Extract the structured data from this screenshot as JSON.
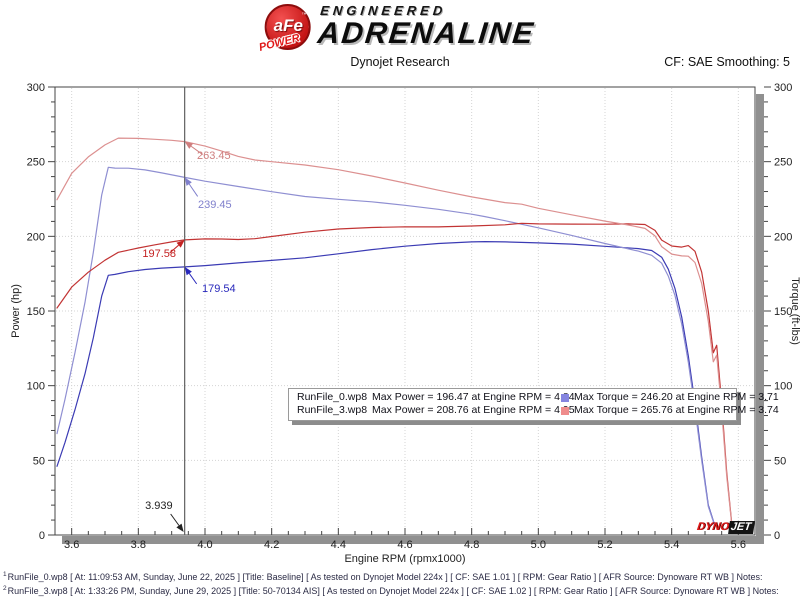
{
  "header": {
    "brand": {
      "badge": "aFe",
      "badge_tm": "™",
      "badge_sub": "POWER",
      "line1": "ENGINEERED",
      "line2": "ADRENALINE"
    },
    "subtitle": "Dynojet Research",
    "smoothing": "CF: SAE Smoothing: 5"
  },
  "chart_data": {
    "type": "line",
    "xlabel": "Engine RPM (rpmx1000)",
    "ylabel_left": "Power (hp)",
    "ylabel_right": "Torque (ft-lbs)",
    "xlim": [
      3.55,
      5.65
    ],
    "ylim_left": [
      0,
      300
    ],
    "ylim_right": [
      0,
      300
    ],
    "x_major_ticks": [
      3.6,
      3.8,
      4.0,
      4.2,
      4.4,
      4.6,
      4.8,
      5.0,
      5.2,
      5.4,
      5.6
    ],
    "x_minor_step": 0.05,
    "y_major_ticks": [
      0,
      50,
      100,
      150,
      200,
      250,
      300
    ],
    "y_minor_step": 10,
    "grid": true,
    "grid_color": "#d4d4d4",
    "frame_color": "#444444",
    "shadow_color": "#909090",
    "cursor": {
      "rpm": 3.939,
      "label": "3.939",
      "line_color": "#606060",
      "readouts": [
        {
          "series": "torque_3",
          "text": "263.45",
          "value": 263.45,
          "color": "#cf7e7e"
        },
        {
          "series": "torque_0",
          "text": "239.45",
          "value": 239.45,
          "color": "#8080cc"
        },
        {
          "series": "power_3",
          "text": "197.58",
          "value": 197.58,
          "color": "#c42222"
        },
        {
          "series": "power_0",
          "text": "179.54",
          "value": 179.54,
          "color": "#2828bb"
        }
      ]
    },
    "series": [
      {
        "id": "power_0",
        "name": "RunFile_0.wp8 Power",
        "axis": "left",
        "color": "#3b3bb4",
        "max": {
          "value": 196.47,
          "rpm": 4.84
        },
        "points": [
          [
            3.556,
            46
          ],
          [
            3.58,
            62
          ],
          [
            3.61,
            84
          ],
          [
            3.64,
            108
          ],
          [
            3.665,
            132
          ],
          [
            3.69,
            160
          ],
          [
            3.71,
            173.9
          ],
          [
            3.73,
            174.5
          ],
          [
            3.77,
            176.3
          ],
          [
            3.82,
            177.8
          ],
          [
            3.87,
            178.7
          ],
          [
            3.939,
            179.54
          ],
          [
            4.0,
            180.4
          ],
          [
            4.1,
            182.2
          ],
          [
            4.2,
            183.9
          ],
          [
            4.3,
            185.6
          ],
          [
            4.4,
            188.3
          ],
          [
            4.5,
            191.1
          ],
          [
            4.6,
            193.4
          ],
          [
            4.7,
            195.2
          ],
          [
            4.8,
            196.3
          ],
          [
            4.84,
            196.47
          ],
          [
            4.9,
            196.3
          ],
          [
            5.0,
            195.6
          ],
          [
            5.1,
            194.8
          ],
          [
            5.2,
            193.3
          ],
          [
            5.3,
            191.8
          ],
          [
            5.34,
            190.5
          ],
          [
            5.37,
            186
          ],
          [
            5.39,
            178
          ],
          [
            5.41,
            165
          ],
          [
            5.43,
            146
          ],
          [
            5.45,
            120
          ],
          [
            5.47,
            88
          ],
          [
            5.49,
            52
          ],
          [
            5.51,
            20
          ],
          [
            5.53,
            6
          ]
        ]
      },
      {
        "id": "torque_0",
        "name": "RunFile_0.wp8 Torque",
        "axis": "right",
        "color": "#8f8fd2",
        "max": {
          "value": 246.2,
          "rpm": 3.71
        },
        "points": [
          [
            3.556,
            67.9
          ],
          [
            3.58,
            90.9
          ],
          [
            3.61,
            122.2
          ],
          [
            3.64,
            155.8
          ],
          [
            3.665,
            189.2
          ],
          [
            3.69,
            227.7
          ],
          [
            3.71,
            246.2
          ],
          [
            3.73,
            245.7
          ],
          [
            3.77,
            245.6
          ],
          [
            3.82,
            244.5
          ],
          [
            3.87,
            242.5
          ],
          [
            3.939,
            239.45
          ],
          [
            4.0,
            236.9
          ],
          [
            4.1,
            233.4
          ],
          [
            4.2,
            229.9
          ],
          [
            4.3,
            226.7
          ],
          [
            4.4,
            224.8
          ],
          [
            4.5,
            223.1
          ],
          [
            4.6,
            220.8
          ],
          [
            4.7,
            218.1
          ],
          [
            4.8,
            214.8
          ],
          [
            4.84,
            213.2
          ],
          [
            4.9,
            210.5
          ],
          [
            5.0,
            205.7
          ],
          [
            5.1,
            200.6
          ],
          [
            5.2,
            195.2
          ],
          [
            5.3,
            190.1
          ],
          [
            5.34,
            187.3
          ],
          [
            5.37,
            182
          ],
          [
            5.39,
            173.4
          ],
          [
            5.41,
            160.3
          ],
          [
            5.43,
            141.3
          ],
          [
            5.45,
            115.7
          ],
          [
            5.47,
            84.5
          ],
          [
            5.49,
            49.8
          ],
          [
            5.51,
            19.1
          ],
          [
            5.53,
            5.7
          ]
        ]
      },
      {
        "id": "power_3",
        "name": "RunFile_3.wp8 Power",
        "axis": "left",
        "color": "#c23434",
        "max": {
          "value": 208.76,
          "rpm": 4.95
        },
        "points": [
          [
            3.556,
            152
          ],
          [
            3.6,
            166
          ],
          [
            3.65,
            176
          ],
          [
            3.7,
            184
          ],
          [
            3.74,
            189.3
          ],
          [
            3.8,
            192.2
          ],
          [
            3.85,
            194.3
          ],
          [
            3.9,
            196.3
          ],
          [
            3.939,
            197.58
          ],
          [
            4.0,
            198.3
          ],
          [
            4.05,
            198.2
          ],
          [
            4.1,
            197.9
          ],
          [
            4.15,
            198.4
          ],
          [
            4.2,
            199.9
          ],
          [
            4.3,
            202.8
          ],
          [
            4.4,
            204.9
          ],
          [
            4.5,
            205.9
          ],
          [
            4.6,
            206.4
          ],
          [
            4.7,
            206.3
          ],
          [
            4.8,
            206.9
          ],
          [
            4.9,
            207.7
          ],
          [
            4.95,
            208.76
          ],
          [
            5.0,
            208.3
          ],
          [
            5.1,
            208.2
          ],
          [
            5.2,
            208.1
          ],
          [
            5.27,
            208.3
          ],
          [
            5.32,
            207.9
          ],
          [
            5.35,
            204
          ],
          [
            5.37,
            197.5
          ],
          [
            5.4,
            193.5
          ],
          [
            5.43,
            192.8
          ],
          [
            5.45,
            193.8
          ],
          [
            5.47,
            190
          ],
          [
            5.49,
            176
          ],
          [
            5.51,
            150
          ],
          [
            5.525,
            122
          ],
          [
            5.535,
            127
          ],
          [
            5.55,
            88
          ],
          [
            5.565,
            42
          ],
          [
            5.58,
            8
          ]
        ]
      },
      {
        "id": "torque_3",
        "name": "RunFile_3.wp8 Torque",
        "axis": "right",
        "color": "#dc9090",
        "max": {
          "value": 265.76,
          "rpm": 3.74
        },
        "points": [
          [
            3.556,
            224.5
          ],
          [
            3.6,
            242.2
          ],
          [
            3.65,
            253.2
          ],
          [
            3.7,
            261.2
          ],
          [
            3.74,
            265.76
          ],
          [
            3.8,
            265.6
          ],
          [
            3.85,
            265
          ],
          [
            3.9,
            264.3
          ],
          [
            3.939,
            263.45
          ],
          [
            4.0,
            260.4
          ],
          [
            4.05,
            257.1
          ],
          [
            4.1,
            253.5
          ],
          [
            4.15,
            251.1
          ],
          [
            4.2,
            250
          ],
          [
            4.3,
            247.8
          ],
          [
            4.4,
            244.6
          ],
          [
            4.5,
            240.4
          ],
          [
            4.6,
            235.7
          ],
          [
            4.7,
            230.9
          ],
          [
            4.8,
            226.4
          ],
          [
            4.9,
            222.6
          ],
          [
            4.95,
            221.5
          ],
          [
            5.0,
            218.8
          ],
          [
            5.1,
            214.4
          ],
          [
            5.2,
            210.2
          ],
          [
            5.27,
            207.6
          ],
          [
            5.32,
            205.3
          ],
          [
            5.35,
            200.3
          ],
          [
            5.37,
            193.1
          ],
          [
            5.4,
            188.1
          ],
          [
            5.43,
            186.9
          ],
          [
            5.45,
            186.7
          ],
          [
            5.47,
            182.5
          ],
          [
            5.49,
            168.4
          ],
          [
            5.51,
            143
          ],
          [
            5.525,
            116
          ],
          [
            5.535,
            120.5
          ],
          [
            5.55,
            83.3
          ],
          [
            5.565,
            39.6
          ],
          [
            5.58,
            7.5
          ]
        ]
      }
    ]
  },
  "legend": {
    "rows": [
      {
        "file": "RunFile_0.wp8",
        "power_color": "#1d1dcf",
        "power_text": "Max Power = 196.47 at Engine RPM = 4.84",
        "torque_color": "#8585e0",
        "torque_text": "Max Torque = 246.20 at Engine RPM = 3.71"
      },
      {
        "file": "RunFile_3.wp8",
        "power_color": "#e01414",
        "power_text": "Max Power = 208.76 at Engine RPM = 4.95",
        "torque_color": "#ef8c8c",
        "torque_text": "Max Torque = 265.76 at Engine RPM = 3.74"
      }
    ]
  },
  "watermark": {
    "part1": "DYNO",
    "part2": "JET"
  },
  "footer": {
    "lines": [
      {
        "sup": "1",
        "text": "RunFile_0.wp8 [ At: 11:09:53 AM, Sunday, June 22, 2025 ] [Title: Baseline]  [ As tested on Dynojet Model 224x ] [ CF: SAE 1.01 ] [ RPM: Gear Ratio ] [ AFR Source: Dynoware RT WB ] Notes:"
      },
      {
        "sup": "2",
        "text": "RunFile_3.wp8 [ At: 1:33:26 PM, Sunday, June 29, 2025 ] [Title: 50-70134 AIS]  [ As tested on Dynojet Model 224x ] [ CF: SAE 1.02 ] [ RPM: Gear Ratio ] [ AFR Source: Dynoware RT WB ] Notes:"
      }
    ]
  }
}
